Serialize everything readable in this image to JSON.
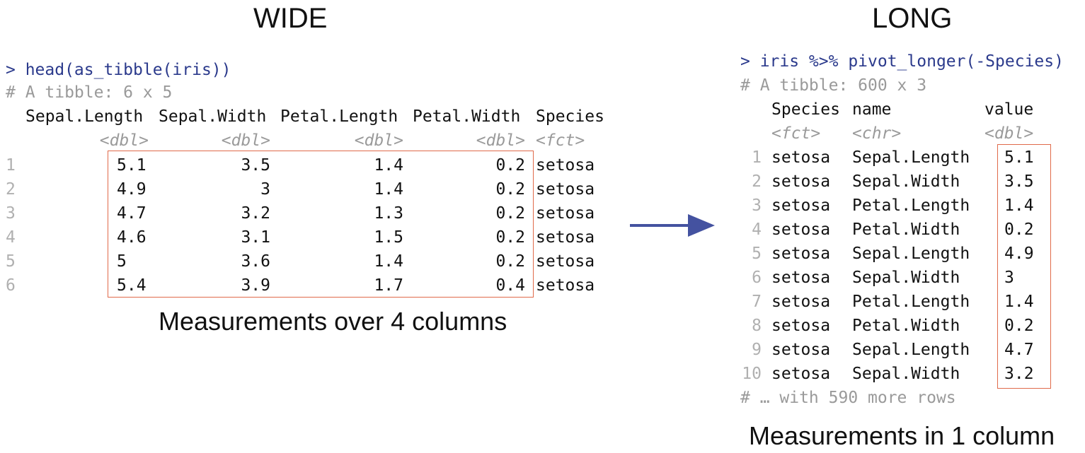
{
  "wide": {
    "title": "WIDE",
    "command": "> head(as_tibble(iris))",
    "tibble_info": "# A tibble: 6 x 5",
    "headers": [
      "Sepal.Length",
      "Sepal.Width",
      "Petal.Length",
      "Petal.Width",
      "Species"
    ],
    "types": [
      "<dbl>",
      "<dbl>",
      "<dbl>",
      "<dbl>",
      "<fct>"
    ],
    "rows": [
      [
        "1",
        "5.1",
        "3.5",
        "1.4",
        "0.2",
        "setosa"
      ],
      [
        "2",
        "4.9",
        "3",
        "1.4",
        "0.2",
        "setosa"
      ],
      [
        "3",
        "4.7",
        "3.2",
        "1.3",
        "0.2",
        "setosa"
      ],
      [
        "4",
        "4.6",
        "3.1",
        "1.5",
        "0.2",
        "setosa"
      ],
      [
        "5",
        "5",
        "3.6",
        "1.4",
        "0.2",
        "setosa"
      ],
      [
        "6",
        "5.4",
        "3.9",
        "1.7",
        "0.4",
        "setosa"
      ]
    ],
    "caption": "Measurements over 4 columns"
  },
  "long": {
    "title": "LONG",
    "command": "> iris %>% pivot_longer(-Species)",
    "tibble_info": "# A tibble: 600 x 3",
    "headers": [
      "Species",
      "name",
      "value"
    ],
    "types": [
      "<fct>",
      "<chr>",
      "<dbl>"
    ],
    "rows": [
      [
        "1",
        "setosa",
        "Sepal.Length",
        "5.1"
      ],
      [
        "2",
        "setosa",
        "Sepal.Width",
        "3.5"
      ],
      [
        "3",
        "setosa",
        "Petal.Length",
        "1.4"
      ],
      [
        "4",
        "setosa",
        "Petal.Width",
        "0.2"
      ],
      [
        "5",
        "setosa",
        "Sepal.Length",
        "4.9"
      ],
      [
        "6",
        "setosa",
        "Sepal.Width",
        "3"
      ],
      [
        "7",
        "setosa",
        "Petal.Length",
        "1.4"
      ],
      [
        "8",
        "setosa",
        "Petal.Width",
        "0.2"
      ],
      [
        "9",
        "setosa",
        "Sepal.Length",
        "4.7"
      ],
      [
        "10",
        "setosa",
        "Sepal.Width",
        "3.2"
      ]
    ],
    "footer": "# … with 590 more rows",
    "caption": "Measurements in 1 column"
  },
  "colors": {
    "command": "#2b3a8c",
    "comment": "#9a9a9a",
    "highlight_box": "#e06a4a",
    "arrow": "#4452a0"
  },
  "icons": {
    "arrow": "right-arrow-icon"
  }
}
